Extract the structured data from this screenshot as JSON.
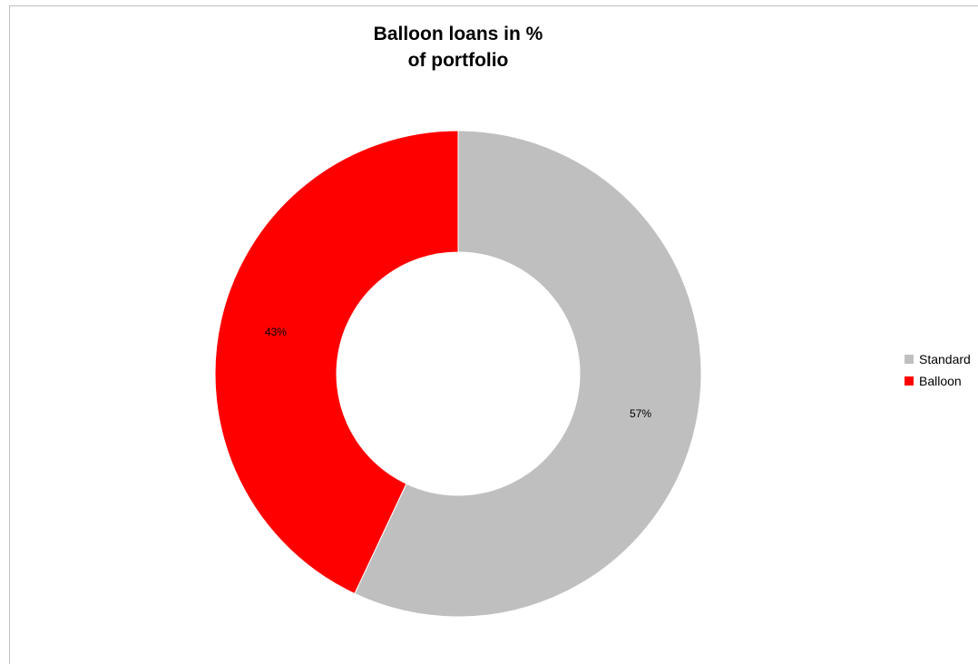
{
  "chart_data": {
    "type": "pie",
    "variant": "donut",
    "title_lines": [
      "Balloon loans in %",
      "of portfolio"
    ],
    "categories": [
      "Standard",
      "Balloon"
    ],
    "values": [
      57,
      43
    ],
    "data_labels": [
      "57%",
      "43%"
    ],
    "colors": [
      "#bfbfbf",
      "#ff0000"
    ],
    "legend_position": "right"
  }
}
